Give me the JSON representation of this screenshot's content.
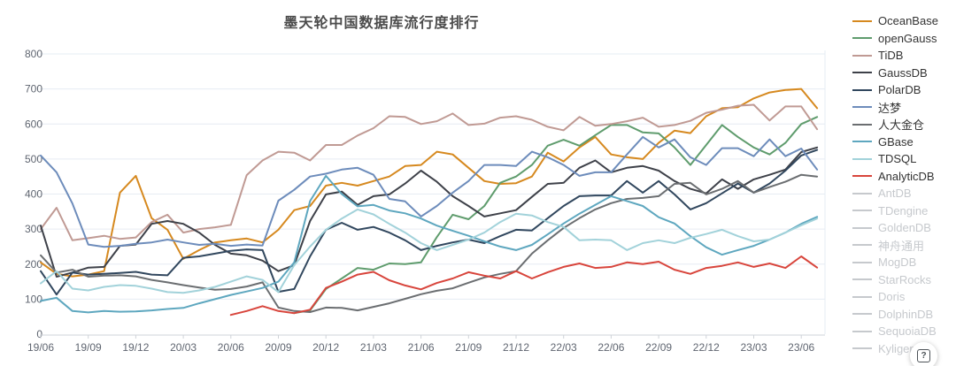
{
  "title": "墨天轮中国数据库流行度排行",
  "help_button": {
    "label": "?"
  },
  "chart_data": {
    "type": "line",
    "title": "墨天轮中国数据库流行度排行",
    "xlabel": "",
    "ylabel": "",
    "ylim": [
      0,
      800
    ],
    "y_ticks": [
      0,
      100,
      200,
      300,
      400,
      500,
      600,
      700,
      800
    ],
    "grid": "horizontal",
    "legend_position": "right",
    "x_start_month": "19/06",
    "x_end_month": "23/07",
    "points_per_series": 50,
    "x_tick_labels": [
      "19/06",
      "19/09",
      "19/12",
      "20/03",
      "20/06",
      "20/09",
      "20/12",
      "21/03",
      "21/06",
      "21/09",
      "21/12",
      "22/03",
      "22/06",
      "22/09",
      "22/12",
      "23/03",
      "23/06"
    ],
    "x_tick_every_n_points": 3,
    "colors": {
      "grid_line": "#e6ecf3",
      "axis_line": "#cfd3d8",
      "tick_text": "#5f6570",
      "title_text": "#4b4b4b",
      "inactive_legend": "#c6c9cd"
    },
    "series": [
      {
        "name": "OceanBase",
        "color": "#d6891f",
        "active": true,
        "values": [
          205,
          172,
          165,
          170,
          180,
          404,
          452,
          331,
          298,
          215,
          240,
          262,
          268,
          273,
          262,
          298,
          354,
          366,
          424,
          432,
          424,
          437,
          450,
          480,
          483,
          521,
          513,
          475,
          437,
          429,
          431,
          450,
          518,
          493,
          533,
          563,
          513,
          505,
          500,
          546,
          581,
          574,
          622,
          645,
          648,
          673,
          690,
          697,
          700,
          645
        ]
      },
      {
        "name": "openGauss",
        "color": "#5f9c6d",
        "active": true,
        "values": [
          null,
          null,
          null,
          null,
          null,
          null,
          null,
          null,
          null,
          null,
          null,
          null,
          null,
          null,
          null,
          null,
          60,
          68,
          129,
          159,
          189,
          184,
          202,
          200,
          205,
          277,
          341,
          328,
          366,
          432,
          450,
          483,
          538,
          555,
          538,
          568,
          597,
          597,
          576,
          573,
          533,
          483,
          540,
          597,
          563,
          533,
          513,
          546,
          600,
          620
        ]
      },
      {
        "name": "TiDB",
        "color": "#c09a94",
        "active": true,
        "values": [
          300,
          361,
          268,
          274,
          281,
          272,
          276,
          320,
          341,
          290,
          300,
          305,
          312,
          454,
          496,
          521,
          518,
          496,
          540,
          540,
          567,
          588,
          622,
          620,
          600,
          608,
          630,
          597,
          601,
          618,
          622,
          612,
          592,
          582,
          620,
          595,
          600,
          608,
          618,
          592,
          597,
          609,
          632,
          641,
          652,
          655,
          610,
          650,
          650,
          585
        ]
      },
      {
        "name": "GaussDB",
        "color": "#3e4149",
        "active": true,
        "values": [
          310,
          164,
          176,
          190,
          192,
          252,
          256,
          315,
          323,
          315,
          290,
          255,
          230,
          225,
          210,
          180,
          197,
          323,
          399,
          407,
          369,
          394,
          399,
          430,
          467,
          435,
          394,
          366,
          336,
          345,
          354,
          392,
          429,
          432,
          475,
          496,
          462,
          475,
          480,
          467,
          437,
          415,
          402,
          442,
          415,
          442,
          455,
          470,
          520,
          533
        ]
      },
      {
        "name": "PolarDB",
        "color": "#31475e",
        "active": true,
        "values": [
          180,
          113,
          176,
          170,
          172,
          175,
          178,
          170,
          168,
          218,
          222,
          230,
          238,
          242,
          240,
          121,
          129,
          222,
          298,
          318,
          298,
          306,
          290,
          268,
          240,
          252,
          262,
          270,
          260,
          280,
          298,
          296,
          331,
          366,
          394,
          396,
          396,
          437,
          404,
          437,
          399,
          356,
          374,
          402,
          430,
          404,
          430,
          467,
          510,
          526
        ]
      },
      {
        "name": "达梦",
        "color": "#6d8cbb",
        "active": true,
        "values": [
          510,
          462,
          373,
          256,
          249,
          252,
          258,
          262,
          270,
          262,
          255,
          258,
          252,
          256,
          253,
          381,
          412,
          450,
          458,
          470,
          475,
          455,
          386,
          379,
          336,
          366,
          404,
          437,
          483,
          483,
          480,
          521,
          505,
          483,
          452,
          462,
          462,
          513,
          563,
          533,
          556,
          505,
          483,
          531,
          531,
          508,
          556,
          508,
          530,
          470
        ]
      },
      {
        "name": "人大金仓",
        "color": "#6b6e71",
        "active": true,
        "values": [
          225,
          176,
          184,
          164,
          167,
          168,
          165,
          155,
          148,
          140,
          133,
          127,
          129,
          136,
          148,
          76,
          66,
          63,
          76,
          75,
          68,
          78,
          88,
          101,
          114,
          124,
          131,
          147,
          162,
          172,
          180,
          230,
          268,
          303,
          331,
          356,
          374,
          386,
          389,
          394,
          429,
          432,
          399,
          415,
          437,
          404,
          420,
          435,
          455,
          450
        ]
      },
      {
        "name": "GBase",
        "color": "#5ea7bf",
        "active": true,
        "values": [
          95,
          104,
          66,
          62,
          66,
          64,
          65,
          68,
          72,
          75,
          88,
          100,
          112,
          122,
          132,
          150,
          205,
          380,
          452,
          400,
          365,
          369,
          353,
          345,
          330,
          310,
          295,
          281,
          265,
          250,
          240,
          255,
          285,
          316,
          344,
          369,
          394,
          380,
          366,
          334,
          316,
          280,
          248,
          227,
          240,
          252,
          270,
          290,
          315,
          335
        ]
      },
      {
        "name": "TDSQL",
        "color": "#a2d2da",
        "active": true,
        "values": [
          145,
          180,
          130,
          125,
          135,
          140,
          138,
          130,
          120,
          118,
          125,
          135,
          150,
          165,
          155,
          120,
          197,
          250,
          298,
          330,
          356,
          342,
          315,
          290,
          260,
          240,
          255,
          270,
          290,
          320,
          344,
          339,
          320,
          306,
          268,
          270,
          268,
          240,
          260,
          268,
          260,
          275,
          286,
          298,
          280,
          265,
          270,
          290,
          311,
          330
        ]
      },
      {
        "name": "AnalyticDB",
        "color": "#d8453c",
        "active": true,
        "values": [
          null,
          null,
          null,
          null,
          null,
          null,
          null,
          null,
          null,
          null,
          null,
          null,
          55,
          66,
          80,
          66,
          60,
          70,
          132,
          150,
          170,
          178,
          154,
          139,
          128,
          146,
          159,
          177,
          167,
          159,
          180,
          159,
          177,
          192,
          202,
          189,
          192,
          205,
          200,
          207,
          184,
          172,
          189,
          195,
          205,
          192,
          202,
          189,
          222,
          190
        ]
      },
      {
        "name": "AntDB",
        "color": "#c6c9cd",
        "active": false,
        "values": null
      },
      {
        "name": "TDengine",
        "color": "#c6c9cd",
        "active": false,
        "values": null
      },
      {
        "name": "GoldenDB",
        "color": "#c6c9cd",
        "active": false,
        "values": null
      },
      {
        "name": "神舟通用",
        "color": "#c6c9cd",
        "active": false,
        "values": null
      },
      {
        "name": "MogDB",
        "color": "#c6c9cd",
        "active": false,
        "values": null
      },
      {
        "name": "StarRocks",
        "color": "#c6c9cd",
        "active": false,
        "values": null
      },
      {
        "name": "Doris",
        "color": "#c6c9cd",
        "active": false,
        "values": null
      },
      {
        "name": "DolphinDB",
        "color": "#c6c9cd",
        "active": false,
        "values": null
      },
      {
        "name": "SequoiaDB",
        "color": "#c6c9cd",
        "active": false,
        "values": null
      },
      {
        "name": "Kyligence",
        "color": "#c6c9cd",
        "active": false,
        "values": null
      }
    ]
  }
}
